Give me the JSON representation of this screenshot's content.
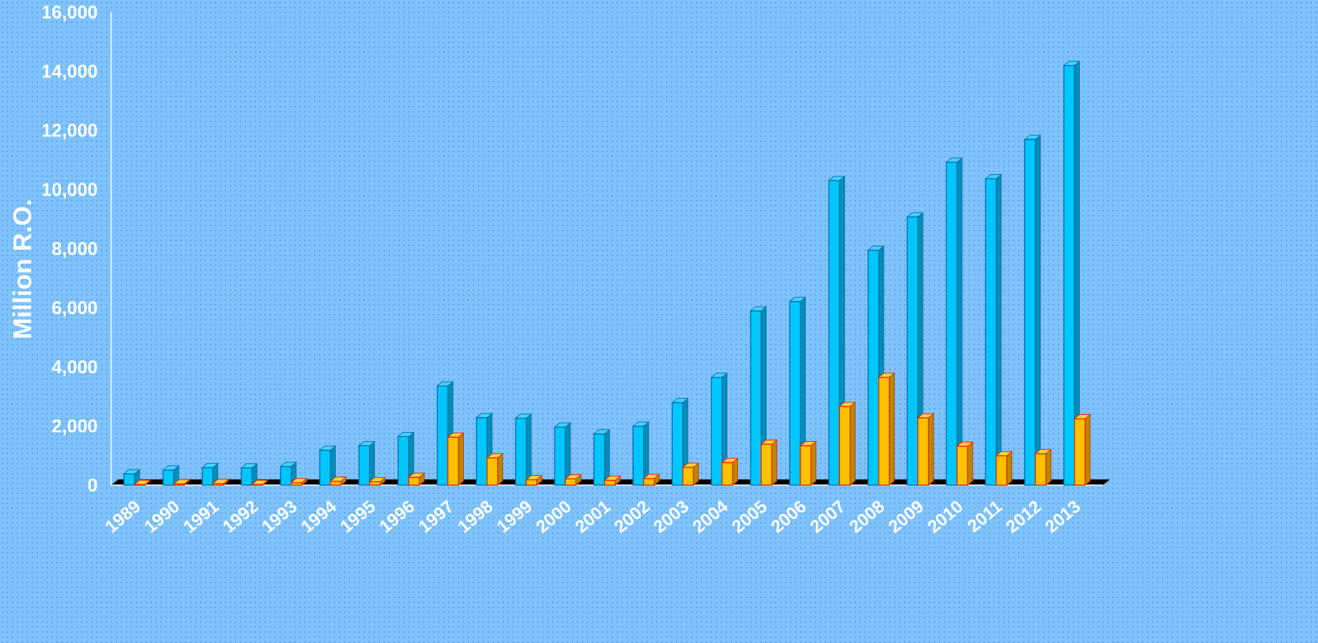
{
  "chart_data": {
    "type": "bar",
    "title": "",
    "xlabel": "",
    "ylabel": "Million R.O.",
    "ylim": [
      0,
      16000
    ],
    "yticks": [
      0,
      2000,
      4000,
      6000,
      8000,
      10000,
      12000,
      14000,
      16000
    ],
    "ytick_labels": [
      "0",
      "2,000",
      "4,000",
      "6,000",
      "8,000",
      "10,000",
      "12,000",
      "14,000",
      "16,000"
    ],
    "grid": false,
    "legend": "none",
    "categories": [
      "1989",
      "1990",
      "1991",
      "1992",
      "1993",
      "1994",
      "1995",
      "1996",
      "1997",
      "1998",
      "1999",
      "2000",
      "2001",
      "2002",
      "2003",
      "2004",
      "2005",
      "2006",
      "2007",
      "2008",
      "2009",
      "2010",
      "2011",
      "2012",
      "2013"
    ],
    "series": [
      {
        "color": "#00c6fb",
        "values": [
          380,
          510,
          590,
          580,
          630,
          1180,
          1330,
          1640,
          3350,
          2280,
          2260,
          1960,
          1730,
          1990,
          2790,
          3640,
          5890,
          6210,
          10300,
          7940,
          9070,
          10920,
          10360,
          11690,
          14190
        ]
      },
      {
        "color": "#ffc000",
        "values": [
          20,
          40,
          50,
          20,
          80,
          130,
          110,
          260,
          1620,
          920,
          180,
          210,
          160,
          220,
          600,
          760,
          1380,
          1330,
          2660,
          3640,
          2270,
          1310,
          990,
          1060,
          2240
        ]
      }
    ]
  }
}
